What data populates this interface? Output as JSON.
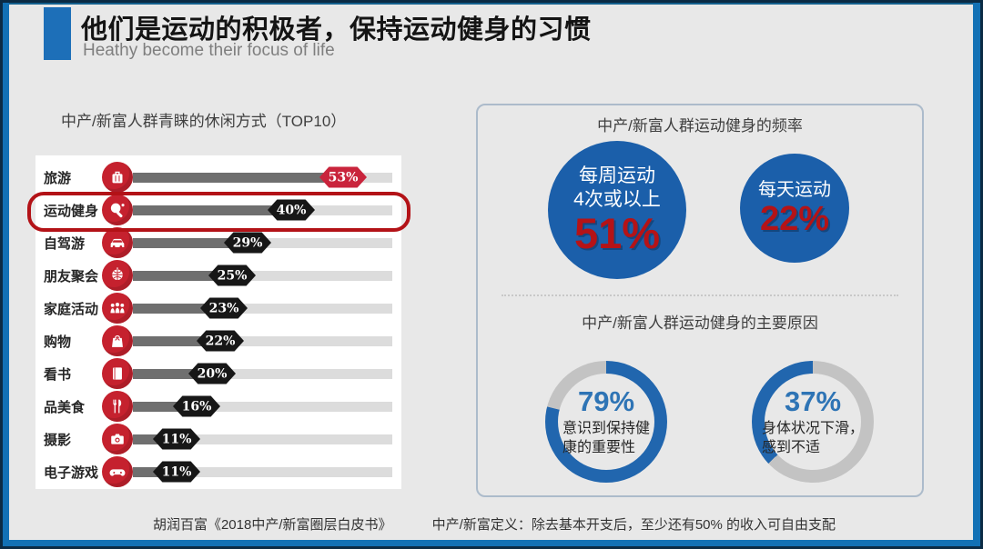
{
  "slide": {
    "title": "他们是运动的积极者，保持运动健身的习惯",
    "subtitle": "Heathy become their focus of life",
    "accent_color": "#1D6FB8",
    "background_color": "#E8E8E8"
  },
  "leisure_chart": {
    "title": "中产/新富人群青睐的休闲方式（TOP10）",
    "highlighted_index": 1,
    "items": [
      {
        "label": "旅游",
        "icon": "luggage-icon",
        "value": 53,
        "value_label": "53%",
        "badge_color": "#C9243C"
      },
      {
        "label": "运动健身",
        "icon": "table-tennis-icon",
        "value": 40,
        "value_label": "40%",
        "badge_color": "#171717"
      },
      {
        "label": "自驾游",
        "icon": "car-icon",
        "value": 29,
        "value_label": "29%",
        "badge_color": "#171717"
      },
      {
        "label": "朋友聚会",
        "icon": "party-icon",
        "value": 25,
        "value_label": "25%",
        "badge_color": "#171717"
      },
      {
        "label": "家庭活动",
        "icon": "family-icon",
        "value": 23,
        "value_label": "23%",
        "badge_color": "#171717"
      },
      {
        "label": "购物",
        "icon": "shopping-bag-icon",
        "value": 22,
        "value_label": "22%",
        "badge_color": "#171717"
      },
      {
        "label": "看书",
        "icon": "book-icon",
        "value": 20,
        "value_label": "20%",
        "badge_color": "#171717"
      },
      {
        "label": "品美食",
        "icon": "dining-icon",
        "value": 16,
        "value_label": "16%",
        "badge_color": "#171717"
      },
      {
        "label": "摄影",
        "icon": "camera-icon",
        "value": 11,
        "value_label": "11%",
        "badge_color": "#171717"
      },
      {
        "label": "电子游戏",
        "icon": "gamepad-icon",
        "value": 11,
        "value_label": "11%",
        "badge_color": "#171717"
      }
    ],
    "bar_fill_color": "#6F6F6F",
    "bar_track_color": "#DCDCDC",
    "icon_circle_color": "#C5212E",
    "highlight_color": "#B31217"
  },
  "frequency_panel": {
    "title": "中产/新富人群运动健身的频率",
    "bubble_color": "#1B5FAA",
    "value_color": "#B51317",
    "bubbles": [
      {
        "label_lines": [
          "每周运动",
          "4次或以上"
        ],
        "value_label": "51%"
      },
      {
        "label_lines": [
          "每天运动"
        ],
        "value_label": "22%"
      }
    ]
  },
  "reasons_panel": {
    "title": "中产/新富人群运动健身的主要原因",
    "donut_blue": "#2166AE",
    "donut_gray": "#C3C3C3",
    "donuts": [
      {
        "value": 79,
        "value_label": "79%",
        "caption_lines": [
          "意识到保持健",
          "康的重要性"
        ],
        "direction": "cw"
      },
      {
        "value": 37,
        "value_label": "37%",
        "caption_lines": [
          "身体状况下滑，",
          "感到不适"
        ],
        "direction": "ccw"
      }
    ]
  },
  "footer": {
    "source": "胡润百富《2018中产/新富圈层白皮书》",
    "definition": "中产/新富定义：除去基本开支后，至少还有50% 的收入可自由支配"
  },
  "chart_data": [
    {
      "type": "bar",
      "orientation": "horizontal",
      "title": "中产/新富人群青睐的休闲方式（TOP10）",
      "categories": [
        "旅游",
        "运动健身",
        "自驾游",
        "朋友聚会",
        "家庭活动",
        "购物",
        "看书",
        "品美食",
        "摄影",
        "电子游戏"
      ],
      "values": [
        53,
        40,
        29,
        25,
        23,
        22,
        20,
        16,
        11,
        11
      ],
      "unit": "%",
      "highlighted_category": "运动健身",
      "xlim": [
        0,
        60
      ],
      "grid": false,
      "legend": "none"
    },
    {
      "type": "bar",
      "display": "bubbles",
      "title": "中产/新富人群运动健身的频率",
      "categories": [
        "每周运动4次或以上",
        "每天运动"
      ],
      "values": [
        51,
        22
      ],
      "unit": "%"
    },
    {
      "type": "pie",
      "display": "donuts",
      "title": "中产/新富人群运动健身的主要原因",
      "series": [
        {
          "name": "意识到保持健康的重要性",
          "values": [
            79,
            21
          ]
        },
        {
          "name": "身体状况下滑，感到不适",
          "values": [
            37,
            63
          ]
        }
      ],
      "unit": "%"
    }
  ]
}
